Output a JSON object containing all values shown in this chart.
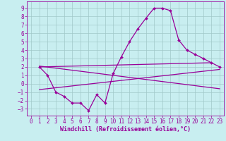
{
  "background_color": "#c8eef0",
  "grid_color": "#a0c8c8",
  "line_color": "#990099",
  "marker": "D",
  "markersize": 2,
  "linewidth": 0.9,
  "xlabel": "Windchill (Refroidissement éolien,°C)",
  "xlabel_fontsize": 6,
  "tick_fontsize": 5.5,
  "xlim": [
    -0.5,
    23.5
  ],
  "ylim": [
    -3.8,
    9.8
  ],
  "xticks": [
    0,
    1,
    2,
    3,
    4,
    5,
    6,
    7,
    8,
    9,
    10,
    11,
    12,
    13,
    14,
    15,
    16,
    17,
    18,
    19,
    20,
    21,
    22,
    23
  ],
  "yticks": [
    -3,
    -2,
    -1,
    0,
    1,
    2,
    3,
    4,
    5,
    6,
    7,
    8,
    9
  ],
  "series1_x": [
    1,
    2,
    3,
    4,
    5,
    6,
    7,
    8,
    9,
    10,
    11,
    12,
    13,
    14,
    15,
    16,
    17,
    18,
    19,
    20,
    21,
    22,
    23
  ],
  "series1_y": [
    2.0,
    1.0,
    -1.0,
    -1.5,
    -2.3,
    -2.3,
    -3.2,
    -1.3,
    -2.3,
    1.2,
    3.2,
    5.0,
    6.5,
    7.8,
    9.0,
    9.0,
    8.7,
    5.2,
    4.0,
    3.5,
    3.0,
    2.5,
    2.0
  ],
  "line2_x": [
    1,
    22
  ],
  "line2_y": [
    2.0,
    2.5
  ],
  "line3_x": [
    1,
    23
  ],
  "line3_y": [
    -0.7,
    1.7
  ],
  "line4_x": [
    1,
    23
  ],
  "line4_y": [
    2.1,
    -0.6
  ]
}
